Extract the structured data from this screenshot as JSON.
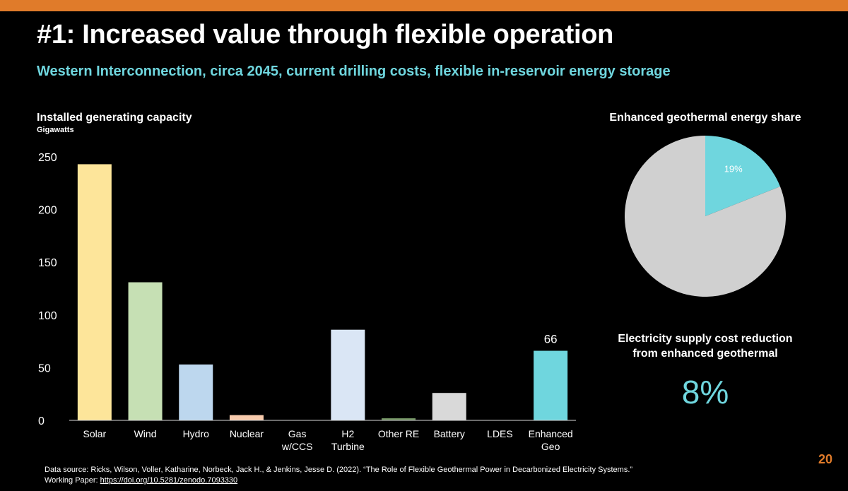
{
  "header": {
    "title": "#1: Increased value through flexible operation",
    "subtitle": "Western Interconnection, circa 2045, current drilling costs, flexible in-reservoir energy storage"
  },
  "colors": {
    "accent_orange": "#e07b2a",
    "accent_teal": "#6fd6de"
  },
  "chart_data": [
    {
      "type": "bar",
      "title": "Installed generating capacity",
      "ylabel": "Gigawatts",
      "xlabel": "",
      "ylim": [
        0,
        250
      ],
      "yticks": [
        0,
        50,
        100,
        150,
        200,
        250
      ],
      "grid": false,
      "categories": [
        [
          "Solar"
        ],
        [
          "Wind"
        ],
        [
          "Hydro"
        ],
        [
          "Nuclear"
        ],
        [
          "Gas",
          "w/CCS"
        ],
        [
          "H2",
          "Turbine"
        ],
        [
          "Other RE"
        ],
        [
          "Battery"
        ],
        [
          "LDES"
        ],
        [
          "Enhanced",
          "Geo"
        ]
      ],
      "values": [
        243,
        131,
        53,
        5,
        0,
        86,
        2,
        26,
        0,
        66
      ],
      "colors": [
        "#fde59a",
        "#c6e0b4",
        "#bdd7ee",
        "#f8cbad",
        "#c9c9c9",
        "#dae6f5",
        "#6f8f5f",
        "#d9d9d9",
        "#8c8c8c",
        "#6fd6de"
      ],
      "data_labels": [
        null,
        null,
        null,
        null,
        null,
        null,
        null,
        null,
        null,
        "66"
      ]
    },
    {
      "type": "pie",
      "title": "Enhanced geothermal energy share",
      "slices": [
        {
          "label": "19%",
          "value": 19,
          "color": "#6fd6de"
        },
        {
          "label": "",
          "value": 81,
          "color": "#d0d0d0"
        }
      ]
    }
  ],
  "cost": {
    "label_line1": "Electricity supply cost reduction",
    "label_line2": "from enhanced geothermal",
    "value": "8%"
  },
  "footer": {
    "source_line1": "Data source: Ricks, Wilson, Voller, Katharine, Norbeck, Jack H., & Jenkins, Jesse D. (2022). “The Role of Flexible Geothermal Power in Decarbonized Electricity Systems.”",
    "source_prefix": "Working Paper: ",
    "source_link": "https://doi.org/10.5281/zenodo.7093330",
    "page_number": "20"
  }
}
